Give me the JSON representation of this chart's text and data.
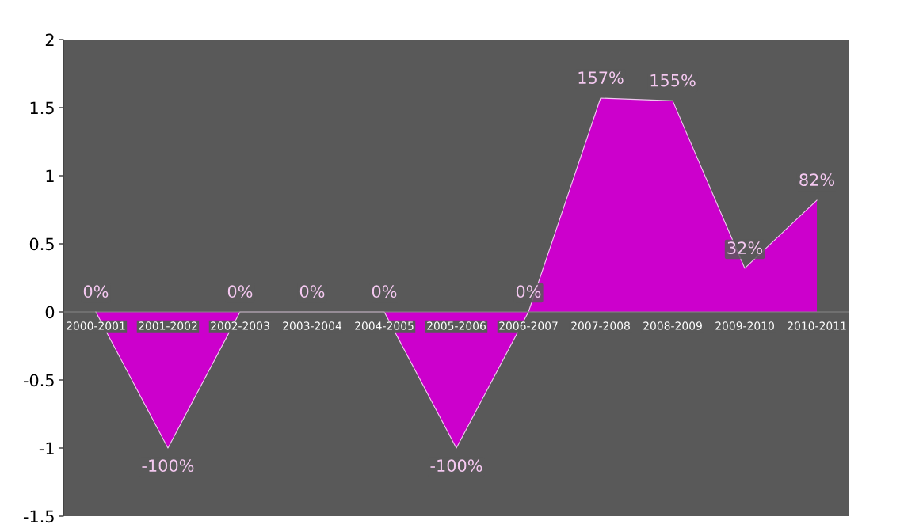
{
  "chart_data": {
    "type": "area",
    "categories": [
      "2000-2001",
      "2001-2002",
      "2002-2003",
      "2003-2004",
      "2004-2005",
      "2005-2006",
      "2006-2007",
      "2007-2008",
      "2008-2009",
      "2009-2010",
      "2010-2011"
    ],
    "series": [
      {
        "color": "#cc00cc",
        "values": [
          0,
          -1,
          0,
          0,
          0,
          -1,
          0,
          1.57,
          1.55,
          0.32,
          0.82
        ],
        "value_labels": [
          "0%",
          "-100%",
          "0%",
          "0%",
          "0%",
          "-100%",
          "0%",
          "157%",
          "155%",
          "32%",
          "82%"
        ]
      }
    ],
    "ylim": [
      -1.5,
      2
    ],
    "yticks": [
      -1.5,
      -1,
      -0.5,
      0,
      0.5,
      1,
      1.5,
      2
    ],
    "grid": false,
    "legend": false
  }
}
